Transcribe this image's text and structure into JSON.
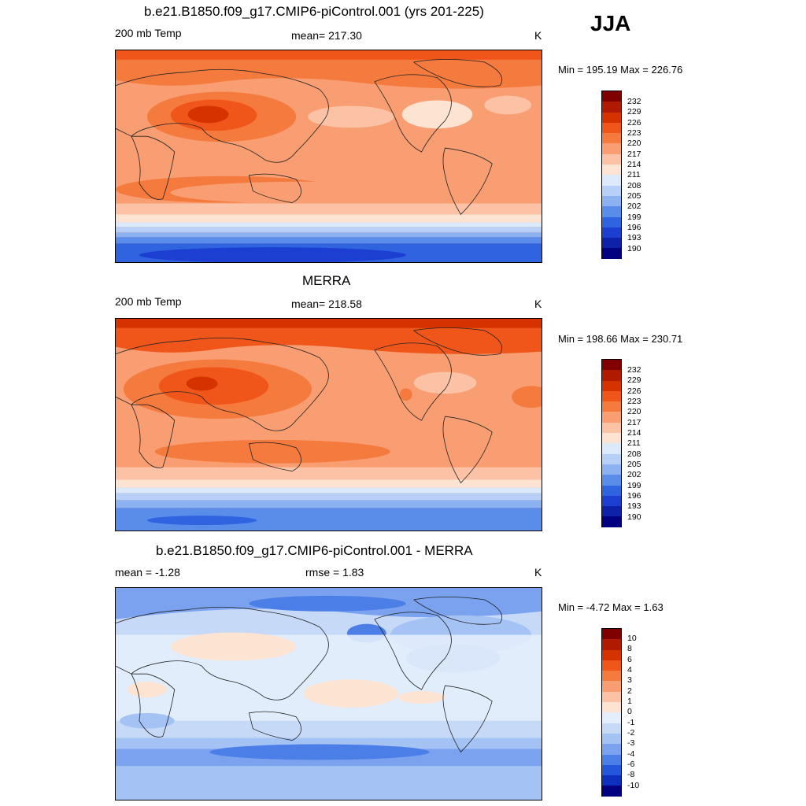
{
  "season": "JJA",
  "panels": [
    {
      "id": "model",
      "title": "b.e21.B1850.f09_g17.CMIP6-piControl.001 (yrs 201-225)",
      "left_label": "200 mb Temp",
      "center_label": "mean= 217.30",
      "units": "K",
      "minmax": "Min = 195.19 Max = 226.76",
      "colorbar_labels": [
        "232",
        "229",
        "226",
        "223",
        "220",
        "217",
        "214",
        "211",
        "208",
        "205",
        "202",
        "199",
        "196",
        "193",
        "190"
      ]
    },
    {
      "id": "obs",
      "title": "MERRA",
      "left_label": "200 mb Temp",
      "center_label": "mean= 218.58",
      "units": "K",
      "minmax": "Min = 198.66 Max = 230.71",
      "colorbar_labels": [
        "232",
        "229",
        "226",
        "223",
        "220",
        "217",
        "214",
        "211",
        "208",
        "205",
        "202",
        "199",
        "196",
        "193",
        "190"
      ]
    },
    {
      "id": "diff",
      "title": "b.e21.B1850.f09_g17.CMIP6-piControl.001 - MERRA",
      "left_label": "mean =  -1.28",
      "center_label": "rmse =   1.83",
      "units": "K",
      "minmax": "Min =  -4.72 Max =   1.63",
      "colorbar_labels": [
        "10",
        "8",
        "6",
        "4",
        "3",
        "2",
        "1",
        "0",
        "-1",
        "-2",
        "-3",
        "-4",
        "-6",
        "-8",
        "-10"
      ]
    }
  ],
  "colors": {
    "temp_scale": [
      "#800000",
      "#b01a00",
      "#d63200",
      "#f0561a",
      "#f57a3e",
      "#f89e72",
      "#fbc2a6",
      "#fde3d2",
      "#dce9fb",
      "#b8d0f7",
      "#8cb2f2",
      "#5a8ce9",
      "#2f63e0",
      "#1c3fd1",
      "#0d22a8",
      "#000080"
    ],
    "diff_scale": [
      "#800000",
      "#b01a00",
      "#d63200",
      "#f0561a",
      "#f57a3e",
      "#f89e72",
      "#fbc2a6",
      "#fde3d2",
      "#e4eefc",
      "#c6daf8",
      "#a4c2f4",
      "#7aa2ee",
      "#4b7ee6",
      "#2456db",
      "#0f2fbf",
      "#000080"
    ]
  }
}
